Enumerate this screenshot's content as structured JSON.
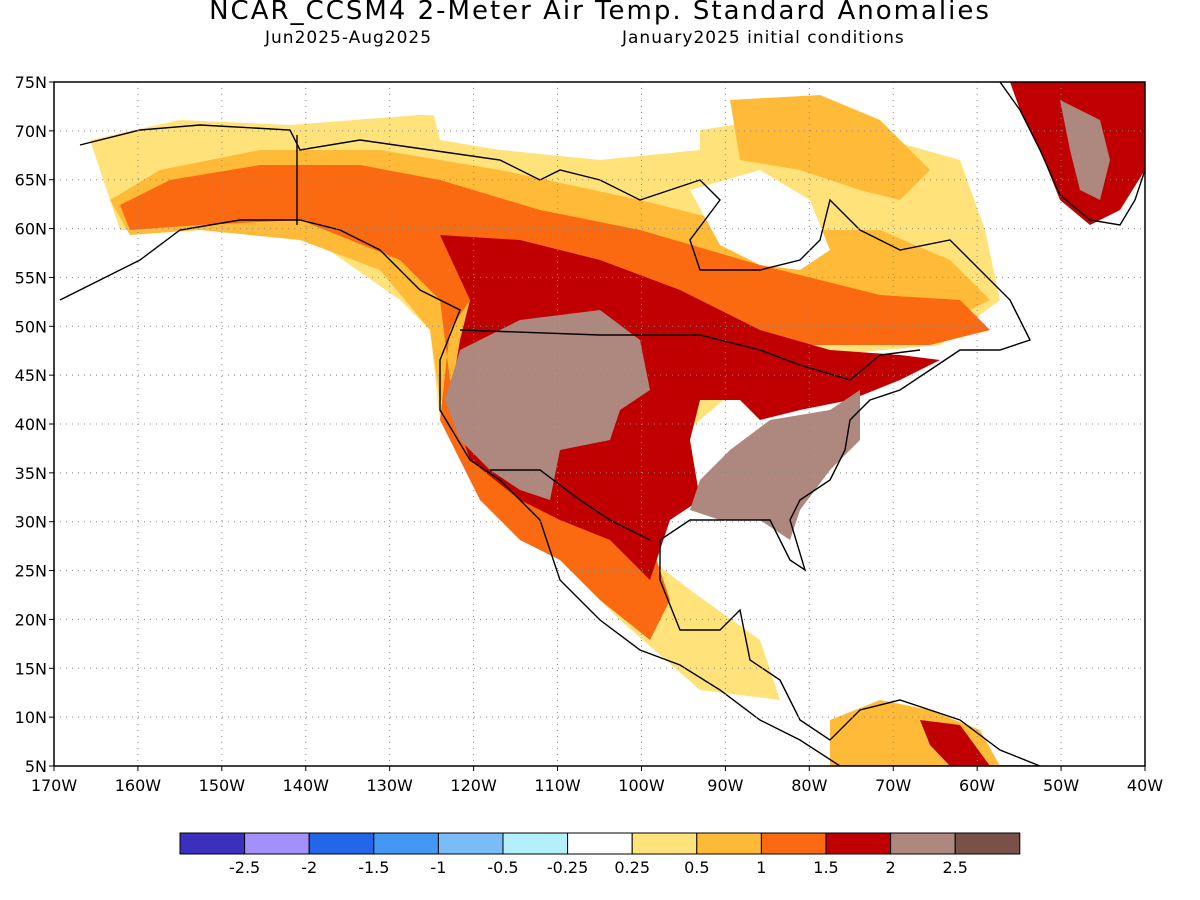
{
  "header": {
    "title": "NCAR_CCSM4 2-Meter Air Temp. Standard Anomalies",
    "period": "Jun2025-Aug2025",
    "init": "January2025 initial conditions"
  },
  "map": {
    "lat_ticks": [
      "75N",
      "70N",
      "65N",
      "60N",
      "55N",
      "50N",
      "45N",
      "40N",
      "35N",
      "30N",
      "25N",
      "20N",
      "15N",
      "10N",
      "5N"
    ],
    "lon_ticks": [
      "170W",
      "160W",
      "150W",
      "140W",
      "130W",
      "120W",
      "110W",
      "100W",
      "90W",
      "80W",
      "70W",
      "60W",
      "50W",
      "40W"
    ],
    "extent": {
      "lon": [
        -170,
        -40
      ],
      "lat": [
        5,
        75
      ]
    },
    "grid": "dotted"
  },
  "legend": {
    "colors": [
      "#3b2fbf",
      "#a390fa",
      "#2366e8",
      "#4497f3",
      "#79bcf7",
      "#b3f0fb",
      "#ffffff",
      "#ffe27a",
      "#ffbb38",
      "#fb6a11",
      "#c00000",
      "#ae877f",
      "#7a5148"
    ],
    "labels": [
      "-2.5",
      "-2",
      "-1.5",
      "-1",
      "-0.5",
      "-0.25",
      "0.25",
      "0.5",
      "1",
      "1.5",
      "2",
      "2.5"
    ]
  }
}
